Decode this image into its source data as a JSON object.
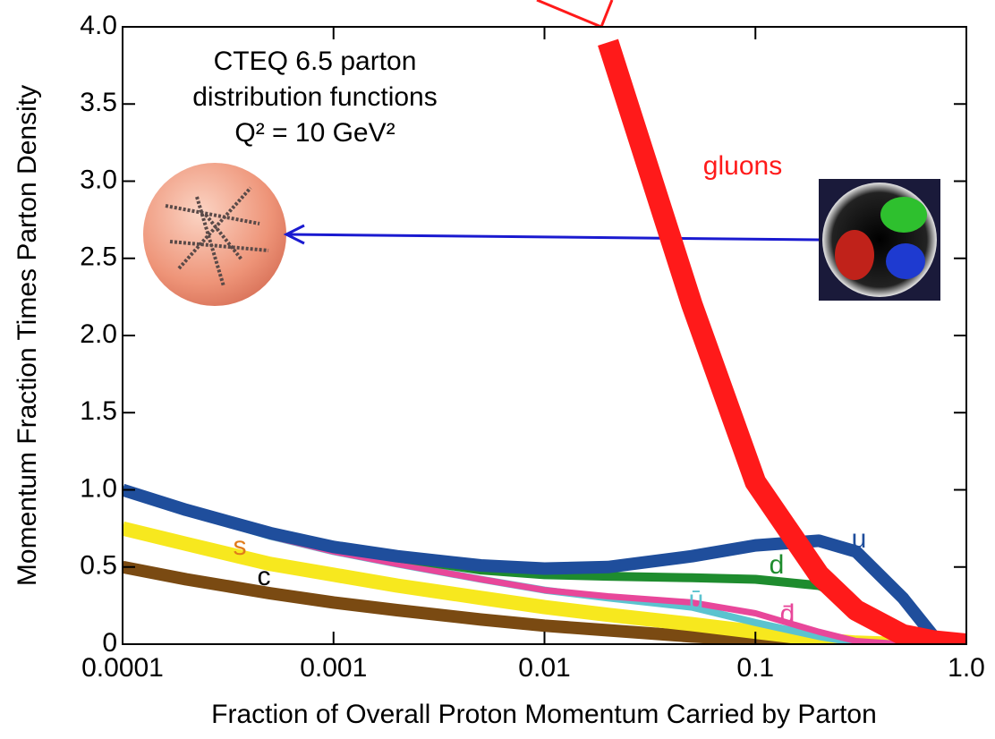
{
  "chart_data": {
    "type": "line",
    "annotations": [
      "CTEQ 6.5 parton",
      "distribution functions",
      "Q² = 10 GeV²"
    ],
    "x_label": "Fraction of Overall Proton Momentum Carried by Parton",
    "y_label": "Momentum Fraction Times Parton Density",
    "x": [
      0.0001,
      0.0002,
      0.0005,
      0.001,
      0.002,
      0.005,
      0.01,
      0.02,
      0.05,
      0.1,
      0.2,
      0.3,
      0.5,
      0.7,
      1.0
    ],
    "series": [
      {
        "name": "gluons",
        "color": "#ff1a1a",
        "values": [
          null,
          null,
          null,
          null,
          null,
          null,
          null,
          3.9,
          2.2,
          1.05,
          0.45,
          0.22,
          0.06,
          0.02,
          0
        ]
      },
      {
        "name": "u",
        "color": "#1f4e9c",
        "values": [
          1.0,
          0.87,
          0.72,
          0.63,
          0.57,
          0.51,
          0.49,
          0.5,
          0.57,
          0.64,
          0.67,
          0.6,
          0.3,
          0.05,
          0
        ]
      },
      {
        "name": "d",
        "color": "#1e8c2e",
        "values": [
          1.0,
          0.87,
          0.72,
          0.63,
          0.56,
          0.48,
          0.45,
          0.44,
          0.43,
          0.42,
          0.38,
          0.27,
          null,
          null,
          null
        ]
      },
      {
        "name": "ū",
        "color": "#5bc3cf",
        "values": [
          1.0,
          0.86,
          0.7,
          0.6,
          0.52,
          0.42,
          0.35,
          0.3,
          0.24,
          0.14,
          0.05,
          0.01,
          0,
          0,
          0
        ]
      },
      {
        "name": "d̄",
        "color": "#e8479a",
        "values": [
          1.0,
          0.86,
          0.7,
          0.6,
          0.52,
          0.42,
          0.35,
          0.31,
          0.27,
          0.2,
          0.08,
          0.02,
          0,
          0,
          0
        ]
      },
      {
        "name": "s",
        "color": "#f7e81e",
        "values": [
          0.75,
          0.65,
          0.52,
          0.45,
          0.38,
          0.3,
          0.24,
          0.19,
          0.13,
          0.08,
          0.03,
          0.01,
          0,
          null,
          null
        ]
      },
      {
        "name": "c",
        "color": "#7a4a12",
        "values": [
          0.5,
          0.42,
          0.33,
          0.27,
          0.22,
          0.16,
          0.12,
          0.09,
          0.05,
          0.03,
          0.01,
          0,
          0,
          null,
          null
        ]
      }
    ],
    "xscale": "log",
    "xlim": [
      0.0001,
      1.0
    ],
    "xticks": [
      0.0001,
      0.001,
      0.01,
      0.1,
      {
        "value": 1.0,
        "label": "1.0"
      }
    ],
    "ylim": [
      0,
      4
    ],
    "yticks": [
      0,
      0.5,
      {
        "value": 1,
        "label": "1.0"
      },
      1.5,
      {
        "value": 2,
        "label": "2.0"
      },
      2.5,
      {
        "value": 3,
        "label": "3.0"
      },
      3.5,
      {
        "value": 4,
        "label": "4.0"
      }
    ]
  }
}
